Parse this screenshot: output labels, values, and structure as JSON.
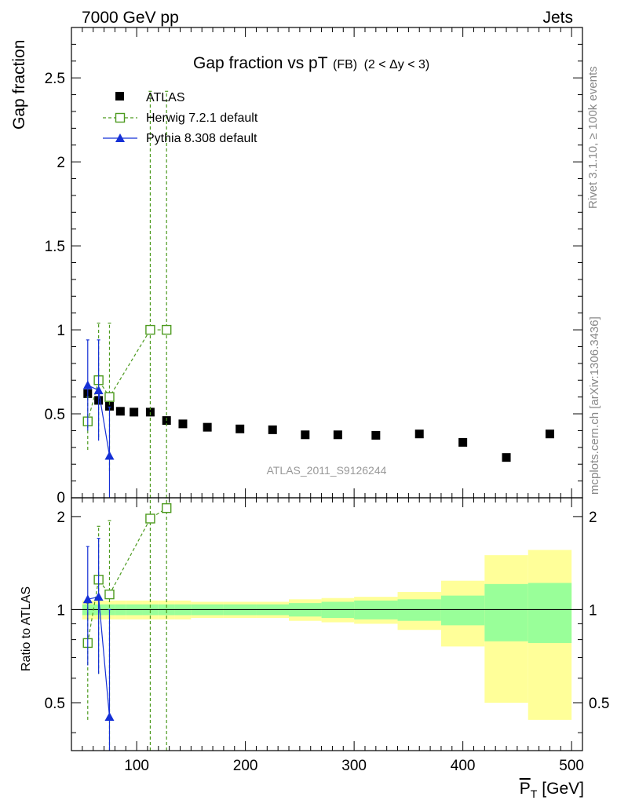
{
  "header": {
    "left": "7000 GeV pp",
    "right": "Jets"
  },
  "side_text": {
    "rivet": "Rivet 3.1.10, ≥ 100k events",
    "mcplots": "mcplots.cern.ch [arXiv:1306.3436]"
  },
  "chart_data": {
    "type": "scatter",
    "title": "Gap fraction vs pT",
    "title_suffix": "(FB)",
    "title_range": "(2 < Δy < 3)",
    "watermark": "ATLAS_2011_S9126244",
    "xlabel": "P",
    "xlabel_sub": "T",
    "xlabel_unit": "[GeV]",
    "ylabel_main": "Gap fraction",
    "ylabel_ratio": "Ratio to ATLAS",
    "xlim": [
      40,
      510
    ],
    "ylim_main": [
      0,
      2.8
    ],
    "ylim_ratio": [
      0.35,
      2.3
    ],
    "ratio_scale": "log",
    "x_ticks": [
      100,
      200,
      300,
      400,
      500
    ],
    "x_tick_labels": [
      "100",
      "200",
      "300",
      "400",
      "500"
    ],
    "y_ticks_main": [
      0.5,
      1,
      1.5,
      2,
      2.5
    ],
    "y_tick_labels_main": [
      "0.5",
      "1",
      "1.5",
      "2",
      "2.5"
    ],
    "y_zero_label": "0",
    "y_ticks_ratio": [
      0.5,
      1,
      2
    ],
    "y_tick_labels_ratio": [
      "0.5",
      "1",
      "2"
    ],
    "colors": {
      "atlas": "#000000",
      "herwig": "#4c9a1e",
      "pythia": "#1530d6",
      "band_inner": "#99ff99",
      "band_outer": "#ffff99"
    },
    "legend_position": "top-left",
    "legend": [
      {
        "name": "ATLAS",
        "key": "atlas"
      },
      {
        "name": "Herwig 7.2.1 default",
        "key": "herwig"
      },
      {
        "name": "Pythia 8.308 default",
        "key": "pythia"
      }
    ],
    "atlas": {
      "x": [
        55,
        65,
        75,
        85,
        97.5,
        112.5,
        127.5,
        142.5,
        165,
        195,
        225,
        255,
        285,
        320,
        360,
        400,
        440,
        480
      ],
      "x_lo": [
        50,
        60,
        70,
        80,
        90,
        105,
        120,
        135,
        150,
        180,
        210,
        240,
        270,
        300,
        340,
        380,
        420,
        460
      ],
      "x_hi": [
        60,
        70,
        80,
        90,
        105,
        120,
        135,
        150,
        180,
        210,
        240,
        270,
        300,
        340,
        380,
        420,
        460,
        500
      ],
      "y": [
        0.62,
        0.58,
        0.545,
        0.515,
        0.51,
        0.51,
        0.46,
        0.44,
        0.42,
        0.41,
        0.405,
        0.375,
        0.375,
        0.372,
        0.38,
        0.33,
        0.24,
        0.38
      ],
      "band_inner": [
        0.04,
        0.04,
        0.04,
        0.04,
        0.04,
        0.04,
        0.04,
        0.04,
        0.04,
        0.04,
        0.04,
        0.05,
        0.06,
        0.07,
        0.08,
        0.11,
        0.21,
        0.22
      ],
      "band_outer": [
        0.07,
        0.07,
        0.07,
        0.07,
        0.07,
        0.07,
        0.07,
        0.07,
        0.06,
        0.06,
        0.06,
        0.08,
        0.09,
        0.1,
        0.14,
        0.24,
        0.5,
        0.56
      ]
    },
    "herwig": {
      "x": [
        55,
        65,
        75,
        112.5,
        127.5
      ],
      "y": [
        0.455,
        0.7,
        0.6,
        1.0,
        1.0
      ],
      "y_lo": [
        0.285,
        0.36,
        0.16,
        0.0,
        0.0
      ],
      "y_hi": [
        0.6,
        1.04,
        1.04,
        2.42,
        2.42
      ],
      "ratio": [
        0.78,
        1.25,
        1.12,
        1.97,
        2.13
      ],
      "ratio_lo": [
        0.44,
        0.62,
        0.35,
        0.35,
        0.35
      ],
      "ratio_hi": [
        1.05,
        1.86,
        1.94,
        2.3,
        2.3
      ]
    },
    "pythia": {
      "x": [
        55,
        65,
        75
      ],
      "y": [
        0.67,
        0.64,
        0.25
      ],
      "y_lo": [
        0.4,
        0.34,
        0.0
      ],
      "y_hi": [
        0.94,
        0.94,
        0.54
      ],
      "ratio": [
        1.08,
        1.1,
        0.45
      ],
      "ratio_lo": [
        0.66,
        0.62,
        0.35
      ],
      "ratio_hi": [
        1.6,
        1.7,
        1.0
      ]
    }
  }
}
